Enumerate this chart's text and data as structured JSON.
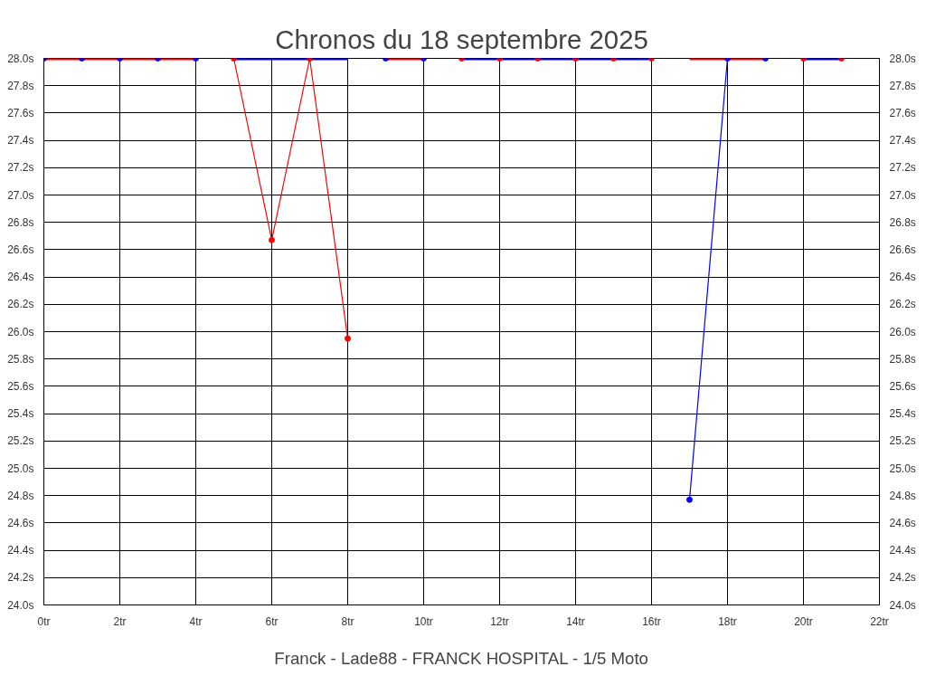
{
  "chart_data": {
    "type": "line",
    "title": "Chronos du 18 septembre 2025",
    "xlabel": "Franck - Lade88 - FRANCK HOSPITAL - 1/5 Moto",
    "x": [
      0,
      1,
      2,
      3,
      4,
      5,
      6,
      7,
      8,
      9,
      10,
      11,
      12,
      13,
      14,
      15,
      16,
      17,
      18,
      19,
      20,
      21
    ],
    "series": [
      {
        "color": "#ff0000",
        "marker": "none",
        "values": [
          28,
          28,
          28,
          28,
          28,
          null,
          null,
          null,
          null,
          28,
          28,
          null,
          null,
          null,
          null,
          null,
          null,
          28,
          28,
          28,
          null,
          null
        ]
      },
      {
        "color": "#0000ff",
        "marker": "none",
        "values": [
          null,
          null,
          null,
          null,
          null,
          28,
          28,
          28,
          28,
          null,
          null,
          28,
          28,
          28,
          28,
          28,
          28,
          null,
          null,
          null,
          28,
          28
        ]
      },
      {
        "color": "#ff0000",
        "marker": "circle",
        "x": [
          5,
          6,
          7,
          8
        ],
        "values": [
          28,
          26.67,
          28,
          25.95
        ]
      },
      {
        "color": "#0000ff",
        "marker": "circle",
        "x": [
          17,
          18
        ],
        "values": [
          24.77,
          28
        ]
      },
      {
        "type": "scatter",
        "color": "#ff0000",
        "marker": "circle",
        "x": [
          11,
          12,
          13,
          14,
          15,
          16,
          20,
          21
        ],
        "values": [
          28,
          28,
          28,
          28,
          28,
          28,
          28,
          28
        ]
      },
      {
        "type": "scatter",
        "color": "#0000ff",
        "marker": "circle",
        "x": [
          0,
          1,
          2,
          3,
          4,
          9,
          10,
          19
        ],
        "values": [
          28,
          28,
          28,
          28,
          28,
          28,
          28,
          28
        ]
      }
    ],
    "xlim": [
      0,
      22
    ],
    "xticks": [
      {
        "value": 0,
        "label": "0tr"
      },
      {
        "value": 2,
        "label": "2tr"
      },
      {
        "value": 4,
        "label": "4tr"
      },
      {
        "value": 6,
        "label": "6tr"
      },
      {
        "value": 8,
        "label": "8tr"
      },
      {
        "value": 10,
        "label": "10tr"
      },
      {
        "value": 12,
        "label": "12tr"
      },
      {
        "value": 14,
        "label": "14tr"
      },
      {
        "value": 16,
        "label": "16tr"
      },
      {
        "value": 18,
        "label": "18tr"
      },
      {
        "value": 20,
        "label": "20tr"
      },
      {
        "value": 22,
        "label": "22tr"
      }
    ],
    "ylim": [
      24,
      28
    ],
    "yticks": [
      {
        "value": 24,
        "label": "24.0s"
      },
      {
        "value": 24.2,
        "label": "24.2s"
      },
      {
        "value": 24.4,
        "label": "24.4s"
      },
      {
        "value": 24.6,
        "label": "24.6s"
      },
      {
        "value": 24.8,
        "label": "24.8s"
      },
      {
        "value": 25,
        "label": "25.0s"
      },
      {
        "value": 25.2,
        "label": "25.2s"
      },
      {
        "value": 25.4,
        "label": "25.4s"
      },
      {
        "value": 25.6,
        "label": "25.6s"
      },
      {
        "value": 25.8,
        "label": "25.8s"
      },
      {
        "value": 26,
        "label": "26.0s"
      },
      {
        "value": 26.2,
        "label": "26.2s"
      },
      {
        "value": 26.4,
        "label": "26.4s"
      },
      {
        "value": 26.6,
        "label": "26.6s"
      },
      {
        "value": 26.8,
        "label": "26.8s"
      },
      {
        "value": 27,
        "label": "27.0s"
      },
      {
        "value": 27.2,
        "label": "27.2s"
      },
      {
        "value": 27.4,
        "label": "27.4s"
      },
      {
        "value": 27.6,
        "label": "27.6s"
      },
      {
        "value": 27.8,
        "label": "27.8s"
      },
      {
        "value": 28,
        "label": "28.0s"
      }
    ],
    "y2lim": [
      24,
      28
    ],
    "y2ticks": [
      {
        "value": 24,
        "label": "24.0s"
      },
      {
        "value": 24.2,
        "label": "24.2s"
      },
      {
        "value": 24.4,
        "label": "24.4s"
      },
      {
        "value": 24.6,
        "label": "24.6s"
      },
      {
        "value": 24.8,
        "label": "24.8s"
      },
      {
        "value": 25,
        "label": "25.0s"
      },
      {
        "value": 25.2,
        "label": "25.2s"
      },
      {
        "value": 25.4,
        "label": "25.4s"
      },
      {
        "value": 25.6,
        "label": "25.6s"
      },
      {
        "value": 25.8,
        "label": "25.8s"
      },
      {
        "value": 26,
        "label": "26.0s"
      },
      {
        "value": 26.2,
        "label": "26.2s"
      },
      {
        "value": 26.4,
        "label": "26.4s"
      },
      {
        "value": 26.6,
        "label": "26.6s"
      },
      {
        "value": 26.8,
        "label": "26.8s"
      },
      {
        "value": 27,
        "label": "27.0s"
      },
      {
        "value": 27.2,
        "label": "27.2s"
      },
      {
        "value": 27.4,
        "label": "27.4s"
      },
      {
        "value": 27.6,
        "label": "27.6s"
      },
      {
        "value": 27.8,
        "label": "27.8s"
      },
      {
        "value": 28,
        "label": "28.0s"
      }
    ],
    "grid": true
  }
}
